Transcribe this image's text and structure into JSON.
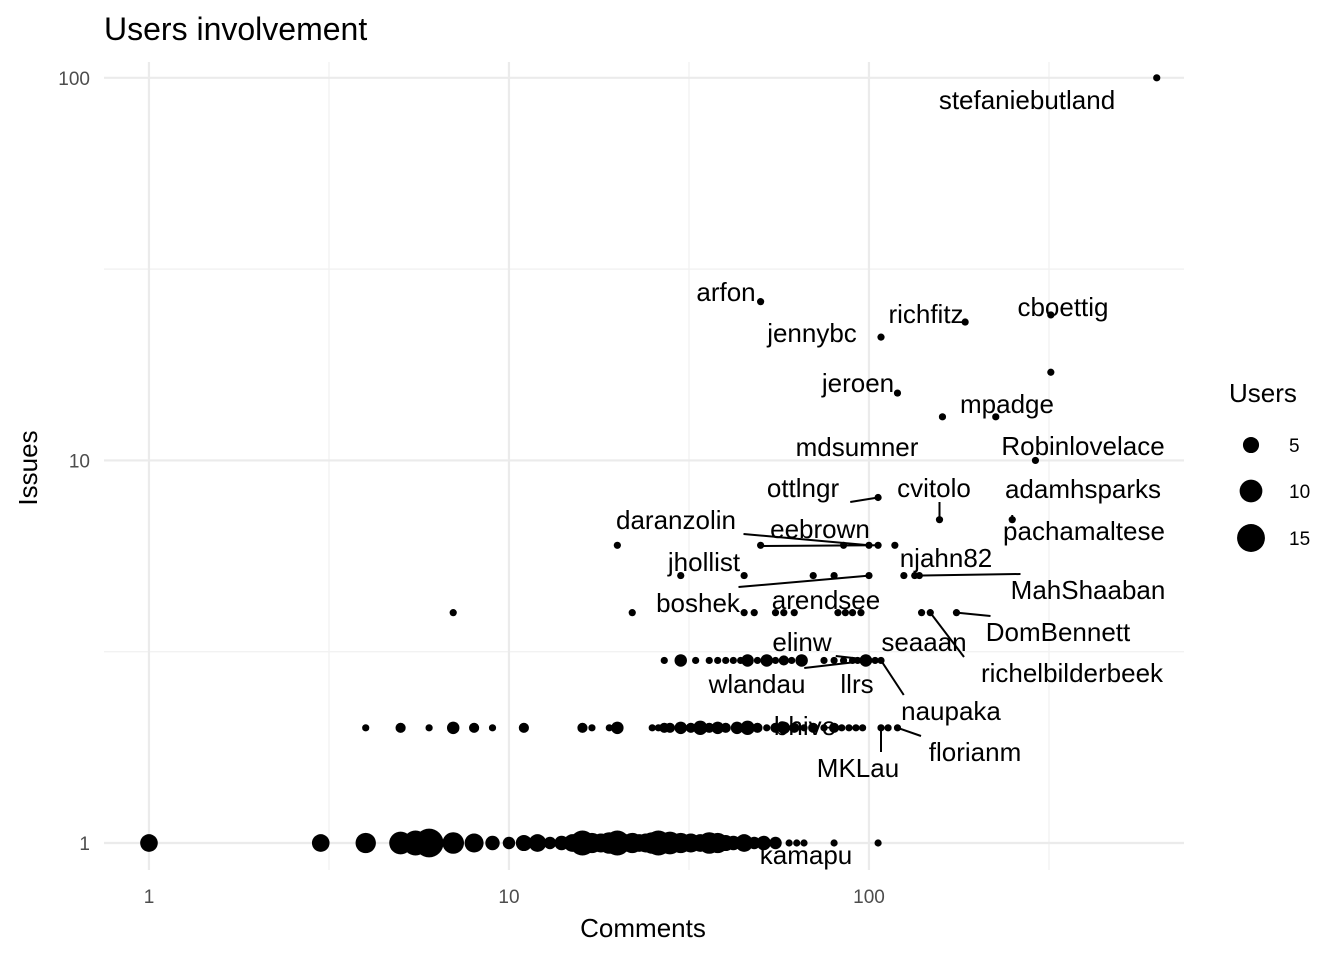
{
  "chart_data": {
    "type": "scatter",
    "title": "Users involvement",
    "xlabel": "Comments",
    "ylabel": "Issues",
    "x_scale": "log10",
    "y_scale": "log10",
    "xlim": [
      0.75,
      750
    ],
    "ylim": [
      0.85,
      110
    ],
    "x_ticks": [
      {
        "value": 1,
        "label": "1"
      },
      {
        "value": 10,
        "label": "10"
      },
      {
        "value": 100,
        "label": "100"
      }
    ],
    "y_ticks": [
      {
        "value": 1,
        "label": "1"
      },
      {
        "value": 10,
        "label": "10"
      },
      {
        "value": 100,
        "label": "100"
      }
    ],
    "grid": true,
    "legend": {
      "title": "Users",
      "position": "right",
      "entries": [
        {
          "size": 5,
          "label": "5"
        },
        {
          "size": 10,
          "label": "10"
        },
        {
          "size": 15,
          "label": "15"
        }
      ]
    },
    "points": [
      {
        "x": 630,
        "y": 100,
        "n": 1
      },
      {
        "x": 50,
        "y": 26,
        "n": 1
      },
      {
        "x": 108,
        "y": 21,
        "n": 1
      },
      {
        "x": 185,
        "y": 23,
        "n": 1
      },
      {
        "x": 320,
        "y": 24,
        "n": 1
      },
      {
        "x": 320,
        "y": 17,
        "n": 1
      },
      {
        "x": 120,
        "y": 15,
        "n": 1
      },
      {
        "x": 160,
        "y": 13,
        "n": 1
      },
      {
        "x": 225,
        "y": 13,
        "n": 1
      },
      {
        "x": 290,
        "y": 10,
        "n": 1
      },
      {
        "x": 106,
        "y": 8,
        "n": 1
      },
      {
        "x": 157,
        "y": 7,
        "n": 1
      },
      {
        "x": 250,
        "y": 7,
        "n": 1
      },
      {
        "x": 20,
        "y": 6,
        "n": 1
      },
      {
        "x": 50,
        "y": 6,
        "n": 1
      },
      {
        "x": 85,
        "y": 6,
        "n": 1
      },
      {
        "x": 100,
        "y": 6,
        "n": 1
      },
      {
        "x": 106,
        "y": 6,
        "n": 1
      },
      {
        "x": 118,
        "y": 6,
        "n": 1
      },
      {
        "x": 30,
        "y": 5,
        "n": 1
      },
      {
        "x": 45,
        "y": 5,
        "n": 1
      },
      {
        "x": 70,
        "y": 5,
        "n": 1
      },
      {
        "x": 80,
        "y": 5,
        "n": 1
      },
      {
        "x": 100,
        "y": 5,
        "n": 1
      },
      {
        "x": 125,
        "y": 5,
        "n": 1
      },
      {
        "x": 134,
        "y": 5,
        "n": 1
      },
      {
        "x": 138,
        "y": 5,
        "n": 1
      },
      {
        "x": 7,
        "y": 4,
        "n": 1
      },
      {
        "x": 22,
        "y": 4,
        "n": 1
      },
      {
        "x": 45,
        "y": 4,
        "n": 1
      },
      {
        "x": 48,
        "y": 4,
        "n": 1
      },
      {
        "x": 55,
        "y": 4,
        "n": 1
      },
      {
        "x": 58,
        "y": 4,
        "n": 1
      },
      {
        "x": 62,
        "y": 4,
        "n": 1
      },
      {
        "x": 82,
        "y": 4,
        "n": 1
      },
      {
        "x": 86,
        "y": 4,
        "n": 1
      },
      {
        "x": 90,
        "y": 4,
        "n": 1
      },
      {
        "x": 95,
        "y": 4,
        "n": 1
      },
      {
        "x": 140,
        "y": 4,
        "n": 1
      },
      {
        "x": 148,
        "y": 4,
        "n": 1
      },
      {
        "x": 175,
        "y": 4,
        "n": 1
      },
      {
        "x": 27,
        "y": 3,
        "n": 1
      },
      {
        "x": 30,
        "y": 3,
        "n": 3
      },
      {
        "x": 33,
        "y": 3,
        "n": 1
      },
      {
        "x": 36,
        "y": 3,
        "n": 1
      },
      {
        "x": 38,
        "y": 3,
        "n": 1
      },
      {
        "x": 40,
        "y": 3,
        "n": 1
      },
      {
        "x": 42,
        "y": 3,
        "n": 1
      },
      {
        "x": 44,
        "y": 3,
        "n": 1
      },
      {
        "x": 46,
        "y": 3,
        "n": 3
      },
      {
        "x": 49,
        "y": 3,
        "n": 1
      },
      {
        "x": 52,
        "y": 3,
        "n": 3
      },
      {
        "x": 55,
        "y": 3,
        "n": 1
      },
      {
        "x": 58,
        "y": 3,
        "n": 2
      },
      {
        "x": 61,
        "y": 3,
        "n": 1
      },
      {
        "x": 65,
        "y": 3,
        "n": 3
      },
      {
        "x": 75,
        "y": 3,
        "n": 1
      },
      {
        "x": 80,
        "y": 3,
        "n": 1
      },
      {
        "x": 85,
        "y": 3,
        "n": 1
      },
      {
        "x": 90,
        "y": 3,
        "n": 1
      },
      {
        "x": 93,
        "y": 3,
        "n": 1
      },
      {
        "x": 96,
        "y": 3,
        "n": 1
      },
      {
        "x": 98,
        "y": 3,
        "n": 3
      },
      {
        "x": 100,
        "y": 3,
        "n": 1
      },
      {
        "x": 104,
        "y": 3,
        "n": 1
      },
      {
        "x": 108,
        "y": 3,
        "n": 1
      },
      {
        "x": 4,
        "y": 2,
        "n": 1
      },
      {
        "x": 5,
        "y": 2,
        "n": 2
      },
      {
        "x": 6,
        "y": 2,
        "n": 1
      },
      {
        "x": 7,
        "y": 2,
        "n": 3
      },
      {
        "x": 8,
        "y": 2,
        "n": 2
      },
      {
        "x": 9,
        "y": 2,
        "n": 1
      },
      {
        "x": 11,
        "y": 2,
        "n": 2
      },
      {
        "x": 16,
        "y": 2,
        "n": 2
      },
      {
        "x": 17,
        "y": 2,
        "n": 1
      },
      {
        "x": 19,
        "y": 2,
        "n": 1
      },
      {
        "x": 20,
        "y": 2,
        "n": 3
      },
      {
        "x": 25,
        "y": 2,
        "n": 1
      },
      {
        "x": 26,
        "y": 2,
        "n": 1
      },
      {
        "x": 27,
        "y": 2,
        "n": 2
      },
      {
        "x": 28,
        "y": 2,
        "n": 2
      },
      {
        "x": 30,
        "y": 2,
        "n": 3
      },
      {
        "x": 32,
        "y": 2,
        "n": 2
      },
      {
        "x": 34,
        "y": 2,
        "n": 4
      },
      {
        "x": 36,
        "y": 2,
        "n": 2
      },
      {
        "x": 38,
        "y": 2,
        "n": 3
      },
      {
        "x": 40,
        "y": 2,
        "n": 2
      },
      {
        "x": 43,
        "y": 2,
        "n": 3
      },
      {
        "x": 46,
        "y": 2,
        "n": 4
      },
      {
        "x": 49,
        "y": 2,
        "n": 2
      },
      {
        "x": 52,
        "y": 2,
        "n": 1
      },
      {
        "x": 55,
        "y": 2,
        "n": 2
      },
      {
        "x": 58,
        "y": 2,
        "n": 3
      },
      {
        "x": 62,
        "y": 2,
        "n": 2
      },
      {
        "x": 66,
        "y": 2,
        "n": 1
      },
      {
        "x": 70,
        "y": 2,
        "n": 2
      },
      {
        "x": 75,
        "y": 2,
        "n": 1
      },
      {
        "x": 80,
        "y": 2,
        "n": 2
      },
      {
        "x": 84,
        "y": 2,
        "n": 1
      },
      {
        "x": 88,
        "y": 2,
        "n": 1
      },
      {
        "x": 92,
        "y": 2,
        "n": 1
      },
      {
        "x": 96,
        "y": 2,
        "n": 1
      },
      {
        "x": 108,
        "y": 2,
        "n": 1
      },
      {
        "x": 113,
        "y": 2,
        "n": 1
      },
      {
        "x": 120,
        "y": 2,
        "n": 1
      },
      {
        "x": 1,
        "y": 1,
        "n": 6
      },
      {
        "x": 3,
        "y": 1,
        "n": 6
      },
      {
        "x": 4,
        "y": 1,
        "n": 8
      },
      {
        "x": 5,
        "y": 1,
        "n": 10
      },
      {
        "x": 5.5,
        "y": 1,
        "n": 12
      },
      {
        "x": 6,
        "y": 1,
        "n": 16
      },
      {
        "x": 7,
        "y": 1,
        "n": 9
      },
      {
        "x": 8,
        "y": 1,
        "n": 7
      },
      {
        "x": 9,
        "y": 1,
        "n": 4
      },
      {
        "x": 10,
        "y": 1,
        "n": 3
      },
      {
        "x": 11,
        "y": 1,
        "n": 5
      },
      {
        "x": 12,
        "y": 1,
        "n": 6
      },
      {
        "x": 13,
        "y": 1,
        "n": 3
      },
      {
        "x": 14,
        "y": 1,
        "n": 4
      },
      {
        "x": 15,
        "y": 1,
        "n": 6
      },
      {
        "x": 16,
        "y": 1,
        "n": 12
      },
      {
        "x": 17,
        "y": 1,
        "n": 8
      },
      {
        "x": 18,
        "y": 1,
        "n": 7
      },
      {
        "x": 19,
        "y": 1,
        "n": 9
      },
      {
        "x": 20,
        "y": 1,
        "n": 12
      },
      {
        "x": 21,
        "y": 1,
        "n": 6
      },
      {
        "x": 22,
        "y": 1,
        "n": 8
      },
      {
        "x": 23,
        "y": 1,
        "n": 6
      },
      {
        "x": 24,
        "y": 1,
        "n": 7
      },
      {
        "x": 25,
        "y": 1,
        "n": 9
      },
      {
        "x": 26,
        "y": 1,
        "n": 12
      },
      {
        "x": 28,
        "y": 1,
        "n": 10
      },
      {
        "x": 30,
        "y": 1,
        "n": 8
      },
      {
        "x": 32,
        "y": 1,
        "n": 7
      },
      {
        "x": 34,
        "y": 1,
        "n": 6
      },
      {
        "x": 36,
        "y": 1,
        "n": 9
      },
      {
        "x": 38,
        "y": 1,
        "n": 8
      },
      {
        "x": 40,
        "y": 1,
        "n": 5
      },
      {
        "x": 42,
        "y": 1,
        "n": 4
      },
      {
        "x": 45,
        "y": 1,
        "n": 6
      },
      {
        "x": 48,
        "y": 1,
        "n": 3
      },
      {
        "x": 51,
        "y": 1,
        "n": 4
      },
      {
        "x": 55,
        "y": 1,
        "n": 3
      },
      {
        "x": 60,
        "y": 1,
        "n": 1
      },
      {
        "x": 63,
        "y": 1,
        "n": 1
      },
      {
        "x": 66,
        "y": 1,
        "n": 1
      },
      {
        "x": 80,
        "y": 1,
        "n": 1
      },
      {
        "x": 106,
        "y": 1,
        "n": 1
      }
    ],
    "labels": [
      {
        "text": "stefaniebutland",
        "x": 630,
        "y": 100
      },
      {
        "text": "arfon",
        "x": 50,
        "y": 26
      },
      {
        "text": "jennybc",
        "x": 108,
        "y": 21
      },
      {
        "text": "richfitz",
        "x": 185,
        "y": 23
      },
      {
        "text": "cboettig",
        "x": 320,
        "y": 24
      },
      {
        "text": "jeroen",
        "x": 120,
        "y": 15
      },
      {
        "text": "mpadge",
        "x": 225,
        "y": 13
      },
      {
        "text": "mdsumner",
        "x": 160,
        "y": 13
      },
      {
        "text": "Robinlovelace",
        "x": 290,
        "y": 10
      },
      {
        "text": "ottlngr",
        "x": 106,
        "y": 8
      },
      {
        "text": "cvitolo",
        "x": 157,
        "y": 7
      },
      {
        "text": "adamhsparks",
        "x": 320,
        "y": 17
      },
      {
        "text": "daranzolin",
        "x": 100,
        "y": 6
      },
      {
        "text": "eebrown",
        "x": 85,
        "y": 6
      },
      {
        "text": "pachamaltese",
        "x": 250,
        "y": 7
      },
      {
        "text": "jhollist",
        "x": 106,
        "y": 6
      },
      {
        "text": "njahn82",
        "x": 118,
        "y": 6
      },
      {
        "text": "MahShaaban",
        "x": 134,
        "y": 5
      },
      {
        "text": "boshek",
        "x": 100,
        "y": 5
      },
      {
        "text": "arendsee",
        "x": 90,
        "y": 4
      },
      {
        "text": "DomBennett",
        "x": 175,
        "y": 4
      },
      {
        "text": "elinw",
        "x": 104,
        "y": 3
      },
      {
        "text": "seaaan",
        "x": 140,
        "y": 4
      },
      {
        "text": "richelbilderbeek",
        "x": 148,
        "y": 4
      },
      {
        "text": "wlandau",
        "x": 100,
        "y": 3
      },
      {
        "text": "llrs",
        "x": 98,
        "y": 3
      },
      {
        "text": "naupaka",
        "x": 108,
        "y": 3
      },
      {
        "text": "bhive",
        "x": 70,
        "y": 2
      },
      {
        "text": "florianm",
        "x": 120,
        "y": 2
      },
      {
        "text": "MKLau",
        "x": 108,
        "y": 2
      },
      {
        "text": "kamapu",
        "x": 60,
        "y": 1
      }
    ]
  }
}
